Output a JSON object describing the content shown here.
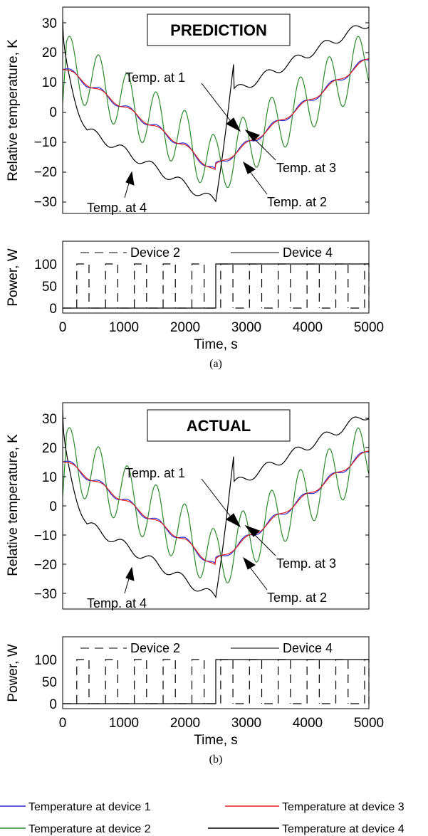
{
  "chart_data": [
    {
      "type": "line",
      "panel": "(a)",
      "box_title": "PREDICTION",
      "ylabel": "Relative temperature, K",
      "xlim": [
        0,
        5000
      ],
      "ylim": [
        -33,
        34
      ],
      "yticks": [
        30,
        20,
        10,
        0,
        -10,
        -20,
        -30
      ],
      "tick_labels": [
        "30",
        "20",
        "10",
        "0",
        "−10",
        "−20",
        "−30"
      ],
      "annotations": [
        "Temp. at 1",
        "Temp. at 3",
        "Temp. at 2",
        "Temp. at 4"
      ],
      "colors": {
        "device1": "#2b2bd6",
        "device2": "#2a8a2a",
        "device3": "#e02020",
        "device4": "#000000"
      }
    },
    {
      "type": "line",
      "panel": "(a)",
      "ylabel": "Power, W",
      "xlabel": "Time, s",
      "xlim": [
        0,
        5000
      ],
      "ylim": [
        -5,
        145
      ],
      "yticks": [
        100,
        50,
        0
      ],
      "xticks": [
        0,
        1000,
        2000,
        3000,
        4000,
        5000
      ],
      "series": [
        {
          "name": "Device 2",
          "style": "dashed",
          "values_desc": "pulse train 0/100 W, period ≈ 470 s"
        },
        {
          "name": "Device 4",
          "style": "solid",
          "steps": [
            [
              0,
              0
            ],
            [
              2500,
              100
            ],
            [
              5000,
              100
            ]
          ]
        }
      ]
    },
    {
      "type": "line",
      "panel": "(b)",
      "box_title": "ACTUAL",
      "ylabel": "Relative temperature, K",
      "xlim": [
        0,
        5000
      ],
      "ylim": [
        -35,
        35
      ],
      "yticks": [
        30,
        20,
        10,
        0,
        -10,
        -20,
        -30
      ],
      "tick_labels": [
        "30",
        "20",
        "10",
        "0",
        "−10",
        "−20",
        "−30"
      ],
      "annotations": [
        "Temp. at 1",
        "Temp. at 3",
        "Temp. at 2",
        "Temp. at 4"
      ]
    },
    {
      "type": "line",
      "panel": "(b)",
      "ylabel": "Power, W",
      "xlabel": "Time, s",
      "xlim": [
        0,
        5000
      ],
      "ylim": [
        -5,
        145
      ],
      "yticks": [
        100,
        50,
        0
      ],
      "xticks": [
        0,
        1000,
        2000,
        3000,
        4000,
        5000
      ],
      "series": [
        {
          "name": "Device 2",
          "style": "dashed"
        },
        {
          "name": "Device 4",
          "style": "solid",
          "steps": [
            [
              0,
              0
            ],
            [
              2500,
              100
            ],
            [
              5000,
              100
            ]
          ]
        }
      ]
    }
  ],
  "text": {
    "top_ylabel": "Relative temperature, K",
    "pow_ylabel": "Power, W",
    "xlabel": "Time, s",
    "title_a": "PREDICTION",
    "title_b": "ACTUAL",
    "caption_a": "(a)",
    "caption_b": "(b)",
    "legend_dev2": "Device 2",
    "legend_dev4": "Device 4",
    "a1": "Temp. at 1",
    "a3": "Temp. at 3",
    "a2": "Temp. at 2",
    "a4": "Temp. at 4",
    "xt0": "0",
    "xt1": "1000",
    "xt2": "2000",
    "xt3": "3000",
    "xt4": "4000",
    "xt5": "5000",
    "pt100": "100",
    "pt50": "50",
    "pt0": "0"
  },
  "bottom_legend": [
    {
      "label": "Temperature at device 1",
      "color": "#2b2bd6"
    },
    {
      "label": "Temperature at device 3",
      "color": "#e02020"
    },
    {
      "label": "Temperature at device 2",
      "color": "#2a8a2a"
    },
    {
      "label": "Temperature at device 4",
      "color": "#000000"
    }
  ]
}
